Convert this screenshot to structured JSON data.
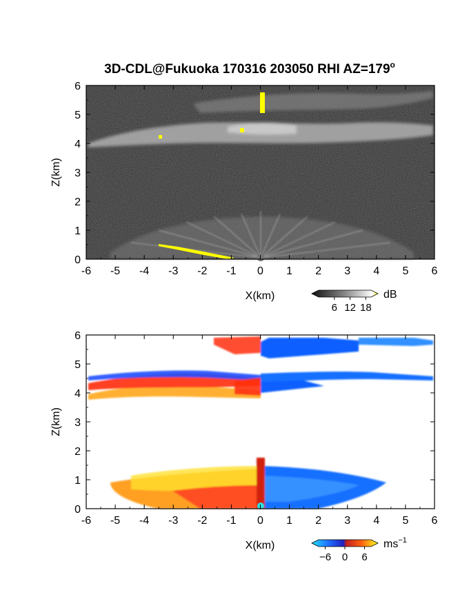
{
  "chart_data": [
    {
      "type": "heatmap",
      "title": "3D-CDL@Fukuoka 170316 203050 RHI AZ=179",
      "title_superscript": "o",
      "xlabel": "X(km)",
      "ylabel": "Z(km)",
      "xlim": [
        -6,
        6
      ],
      "ylim": [
        0,
        6
      ],
      "x_ticks": [
        "-6",
        "-5",
        "-4",
        "-3",
        "-2",
        "-1",
        "0",
        "1",
        "2",
        "3",
        "4",
        "5",
        "6"
      ],
      "y_ticks": [
        "0",
        "1",
        "2",
        "3",
        "4",
        "5",
        "6"
      ],
      "colorbar": {
        "label": "dB",
        "ticks": [
          "6",
          "12",
          "18"
        ],
        "range": [
          0,
          20
        ],
        "colormap": "grayscale-yellow-overflow"
      },
      "features": [
        {
          "name": "cloud layer",
          "z_range": [
            3.9,
            4.5
          ]
        },
        {
          "name": "upper cloud",
          "z_range": [
            4.7,
            6.0
          ]
        },
        {
          "name": "boundary layer",
          "z_range": [
            0,
            1.4
          ]
        }
      ],
      "grid": false
    },
    {
      "type": "heatmap",
      "xlabel": "X(km)",
      "ylabel": "Z(km)",
      "xlim": [
        -6,
        6
      ],
      "ylim": [
        0,
        6
      ],
      "x_ticks": [
        "-6",
        "-5",
        "-4",
        "-3",
        "-2",
        "-1",
        "0",
        "1",
        "2",
        "3",
        "4",
        "5",
        "6"
      ],
      "y_ticks": [
        "0",
        "1",
        "2",
        "3",
        "4",
        "5",
        "6"
      ],
      "colorbar": {
        "label": "ms",
        "label_superscript": "−1",
        "ticks": [
          "−6",
          "0",
          "6"
        ],
        "range": [
          -8,
          8
        ],
        "colormap": "cyan-blue-red-yellow"
      },
      "grid": false
    }
  ],
  "colors": {
    "panel_background": "#2a2a2a",
    "overflow": "#ffff00",
    "negative_velocity": "#1060ff",
    "positive_velocity": "#ff3010"
  }
}
